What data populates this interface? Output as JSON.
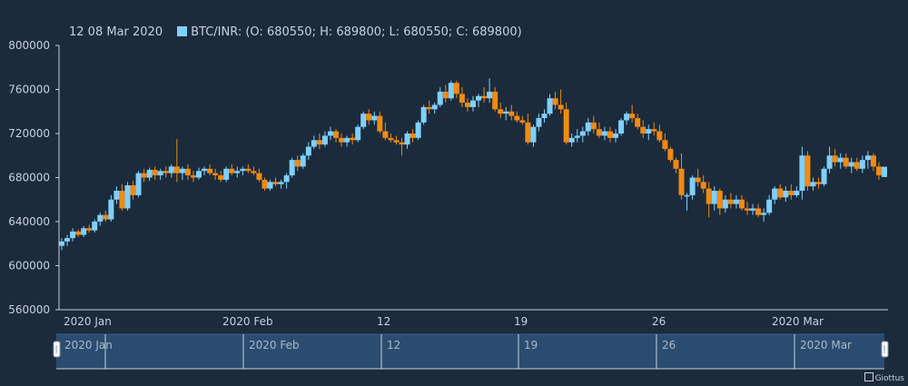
{
  "legend": {
    "date": "12 08 Mar 2020",
    "series_label": "BTC/INR: (O: 680550; H: 689800; L: 680550; C: 689800)"
  },
  "credit": "Giottus",
  "colors": {
    "background": "#1b2b3c",
    "up": "#7fd0ff",
    "down": "#f08a12",
    "axis": "#c7d1dc",
    "navigator_fill": "#2a4c70"
  },
  "chart_data": {
    "type": "candlestick",
    "title": "",
    "series_name": "BTC/INR",
    "ylim": [
      560000,
      800000
    ],
    "y_ticks": [
      800000,
      760000,
      720000,
      680000,
      640000,
      600000,
      560000
    ],
    "x_tick_labels": [
      "2020 Jan",
      "2020 Feb",
      "12",
      "19",
      "26",
      "2020 Mar"
    ],
    "navigator_labels": [
      "2020 Jan",
      "2020 Feb",
      "12",
      "19",
      "26",
      "2020 Mar"
    ],
    "candles": [
      [
        618000,
        625000,
        614000,
        622000
      ],
      [
        622000,
        628000,
        618000,
        625000
      ],
      [
        625000,
        634000,
        622000,
        631000
      ],
      [
        631000,
        633000,
        626000,
        628000
      ],
      [
        628000,
        636000,
        626000,
        634000
      ],
      [
        634000,
        637000,
        630000,
        632000
      ],
      [
        632000,
        642000,
        630000,
        640000
      ],
      [
        640000,
        648000,
        636000,
        646000
      ],
      [
        646000,
        650000,
        640000,
        642000
      ],
      [
        642000,
        664000,
        640000,
        660000
      ],
      [
        660000,
        672000,
        656000,
        668000
      ],
      [
        668000,
        674000,
        650000,
        652000
      ],
      [
        652000,
        676000,
        650000,
        673000
      ],
      [
        673000,
        677000,
        660000,
        664000
      ],
      [
        664000,
        686000,
        662000,
        684000
      ],
      [
        684000,
        688000,
        676000,
        680000
      ],
      [
        680000,
        689000,
        677000,
        687000
      ],
      [
        687000,
        690000,
        678000,
        682000
      ],
      [
        682000,
        688000,
        678000,
        686000
      ],
      [
        686000,
        690000,
        680000,
        684000
      ],
      [
        684000,
        692000,
        680000,
        690000
      ],
      [
        690000,
        715000,
        676000,
        684000
      ],
      [
        684000,
        690000,
        678000,
        688000
      ],
      [
        688000,
        692000,
        678000,
        682000
      ],
      [
        682000,
        686000,
        676000,
        680000
      ],
      [
        680000,
        689000,
        678000,
        686000
      ],
      [
        686000,
        690000,
        682000,
        688000
      ],
      [
        688000,
        692000,
        682000,
        684000
      ],
      [
        684000,
        688000,
        678000,
        682000
      ],
      [
        682000,
        686000,
        676000,
        678000
      ],
      [
        678000,
        690000,
        676000,
        688000
      ],
      [
        688000,
        692000,
        682000,
        684000
      ],
      [
        684000,
        690000,
        680000,
        686000
      ],
      [
        686000,
        690000,
        682000,
        688000
      ],
      [
        688000,
        692000,
        684000,
        686000
      ],
      [
        686000,
        690000,
        682000,
        684000
      ],
      [
        684000,
        688000,
        676000,
        678000
      ],
      [
        678000,
        680000,
        668000,
        670000
      ],
      [
        670000,
        678000,
        668000,
        676000
      ],
      [
        676000,
        680000,
        672000,
        674000
      ],
      [
        674000,
        678000,
        670000,
        676000
      ],
      [
        676000,
        684000,
        670000,
        682000
      ],
      [
        682000,
        698000,
        680000,
        696000
      ],
      [
        696000,
        700000,
        686000,
        690000
      ],
      [
        690000,
        702000,
        688000,
        700000
      ],
      [
        700000,
        712000,
        696000,
        708000
      ],
      [
        708000,
        718000,
        706000,
        714000
      ],
      [
        714000,
        720000,
        706000,
        710000
      ],
      [
        710000,
        722000,
        708000,
        718000
      ],
      [
        718000,
        726000,
        714000,
        722000
      ],
      [
        722000,
        724000,
        712000,
        716000
      ],
      [
        716000,
        720000,
        708000,
        712000
      ],
      [
        712000,
        718000,
        708000,
        716000
      ],
      [
        716000,
        720000,
        710000,
        714000
      ],
      [
        714000,
        728000,
        712000,
        726000
      ],
      [
        726000,
        740000,
        724000,
        738000
      ],
      [
        738000,
        742000,
        728000,
        732000
      ],
      [
        732000,
        740000,
        728000,
        736000
      ],
      [
        736000,
        740000,
        720000,
        722000
      ],
      [
        722000,
        730000,
        714000,
        716000
      ],
      [
        716000,
        720000,
        712000,
        714000
      ],
      [
        714000,
        718000,
        710000,
        712000
      ],
      [
        712000,
        716000,
        700000,
        710000
      ],
      [
        710000,
        722000,
        706000,
        720000
      ],
      [
        720000,
        724000,
        712000,
        716000
      ],
      [
        716000,
        732000,
        714000,
        730000
      ],
      [
        730000,
        746000,
        728000,
        744000
      ],
      [
        744000,
        750000,
        738000,
        742000
      ],
      [
        742000,
        748000,
        738000,
        746000
      ],
      [
        746000,
        762000,
        744000,
        758000
      ],
      [
        758000,
        764000,
        748000,
        752000
      ],
      [
        752000,
        768000,
        750000,
        766000
      ],
      [
        766000,
        768000,
        752000,
        756000
      ],
      [
        756000,
        762000,
        744000,
        748000
      ],
      [
        748000,
        752000,
        740000,
        744000
      ],
      [
        744000,
        754000,
        740000,
        750000
      ],
      [
        750000,
        756000,
        744000,
        754000
      ],
      [
        754000,
        762000,
        748000,
        752000
      ],
      [
        752000,
        770000,
        748000,
        758000
      ],
      [
        758000,
        762000,
        740000,
        742000
      ],
      [
        742000,
        748000,
        734000,
        738000
      ],
      [
        738000,
        744000,
        732000,
        740000
      ],
      [
        740000,
        746000,
        732000,
        736000
      ],
      [
        736000,
        740000,
        730000,
        732000
      ],
      [
        732000,
        736000,
        728000,
        730000
      ],
      [
        730000,
        738000,
        710000,
        712000
      ],
      [
        712000,
        728000,
        708000,
        726000
      ],
      [
        726000,
        738000,
        722000,
        734000
      ],
      [
        734000,
        742000,
        730000,
        738000
      ],
      [
        738000,
        756000,
        736000,
        752000
      ],
      [
        752000,
        758000,
        742000,
        746000
      ],
      [
        746000,
        760000,
        738000,
        742000
      ],
      [
        742000,
        748000,
        710000,
        712000
      ],
      [
        712000,
        720000,
        708000,
        716000
      ],
      [
        716000,
        724000,
        712000,
        718000
      ],
      [
        718000,
        726000,
        712000,
        722000
      ],
      [
        722000,
        734000,
        718000,
        730000
      ],
      [
        730000,
        736000,
        720000,
        724000
      ],
      [
        724000,
        730000,
        716000,
        718000
      ],
      [
        718000,
        726000,
        714000,
        722000
      ],
      [
        722000,
        726000,
        712000,
        716000
      ],
      [
        716000,
        724000,
        712000,
        720000
      ],
      [
        720000,
        734000,
        718000,
        732000
      ],
      [
        732000,
        740000,
        728000,
        738000
      ],
      [
        738000,
        746000,
        730000,
        734000
      ],
      [
        734000,
        738000,
        724000,
        726000
      ],
      [
        726000,
        732000,
        716000,
        720000
      ],
      [
        720000,
        728000,
        714000,
        724000
      ],
      [
        724000,
        730000,
        718000,
        722000
      ],
      [
        722000,
        728000,
        712000,
        714000
      ],
      [
        714000,
        720000,
        704000,
        706000
      ],
      [
        706000,
        708000,
        694000,
        696000
      ],
      [
        696000,
        698000,
        684000,
        688000
      ],
      [
        688000,
        702000,
        660000,
        664000
      ],
      [
        664000,
        666000,
        650000,
        664000
      ],
      [
        664000,
        682000,
        660000,
        680000
      ],
      [
        680000,
        688000,
        672000,
        676000
      ],
      [
        676000,
        682000,
        666000,
        670000
      ],
      [
        670000,
        676000,
        644000,
        656000
      ],
      [
        656000,
        672000,
        650000,
        668000
      ],
      [
        668000,
        670000,
        646000,
        652000
      ],
      [
        652000,
        664000,
        648000,
        660000
      ],
      [
        660000,
        666000,
        652000,
        656000
      ],
      [
        656000,
        664000,
        652000,
        660000
      ],
      [
        660000,
        664000,
        650000,
        652000
      ],
      [
        652000,
        658000,
        646000,
        650000
      ],
      [
        650000,
        656000,
        646000,
        652000
      ],
      [
        652000,
        656000,
        644000,
        646000
      ],
      [
        646000,
        652000,
        640000,
        648000
      ],
      [
        648000,
        664000,
        646000,
        660000
      ],
      [
        660000,
        672000,
        656000,
        670000
      ],
      [
        670000,
        674000,
        660000,
        662000
      ],
      [
        662000,
        672000,
        658000,
        668000
      ],
      [
        668000,
        674000,
        660000,
        664000
      ],
      [
        664000,
        672000,
        662000,
        668000
      ],
      [
        668000,
        708000,
        660000,
        700000
      ],
      [
        700000,
        704000,
        668000,
        672000
      ],
      [
        672000,
        680000,
        668000,
        676000
      ],
      [
        676000,
        680000,
        670000,
        674000
      ],
      [
        674000,
        690000,
        672000,
        688000
      ],
      [
        688000,
        708000,
        684000,
        700000
      ],
      [
        700000,
        706000,
        690000,
        694000
      ],
      [
        694000,
        702000,
        688000,
        698000
      ],
      [
        698000,
        702000,
        688000,
        690000
      ],
      [
        690000,
        698000,
        684000,
        694000
      ],
      [
        694000,
        698000,
        686000,
        688000
      ],
      [
        688000,
        700000,
        684000,
        696000
      ],
      [
        696000,
        704000,
        688000,
        700000
      ],
      [
        700000,
        702000,
        686000,
        690000
      ],
      [
        690000,
        694000,
        678000,
        682000
      ],
      [
        680550,
        689800,
        680550,
        689800
      ]
    ]
  }
}
